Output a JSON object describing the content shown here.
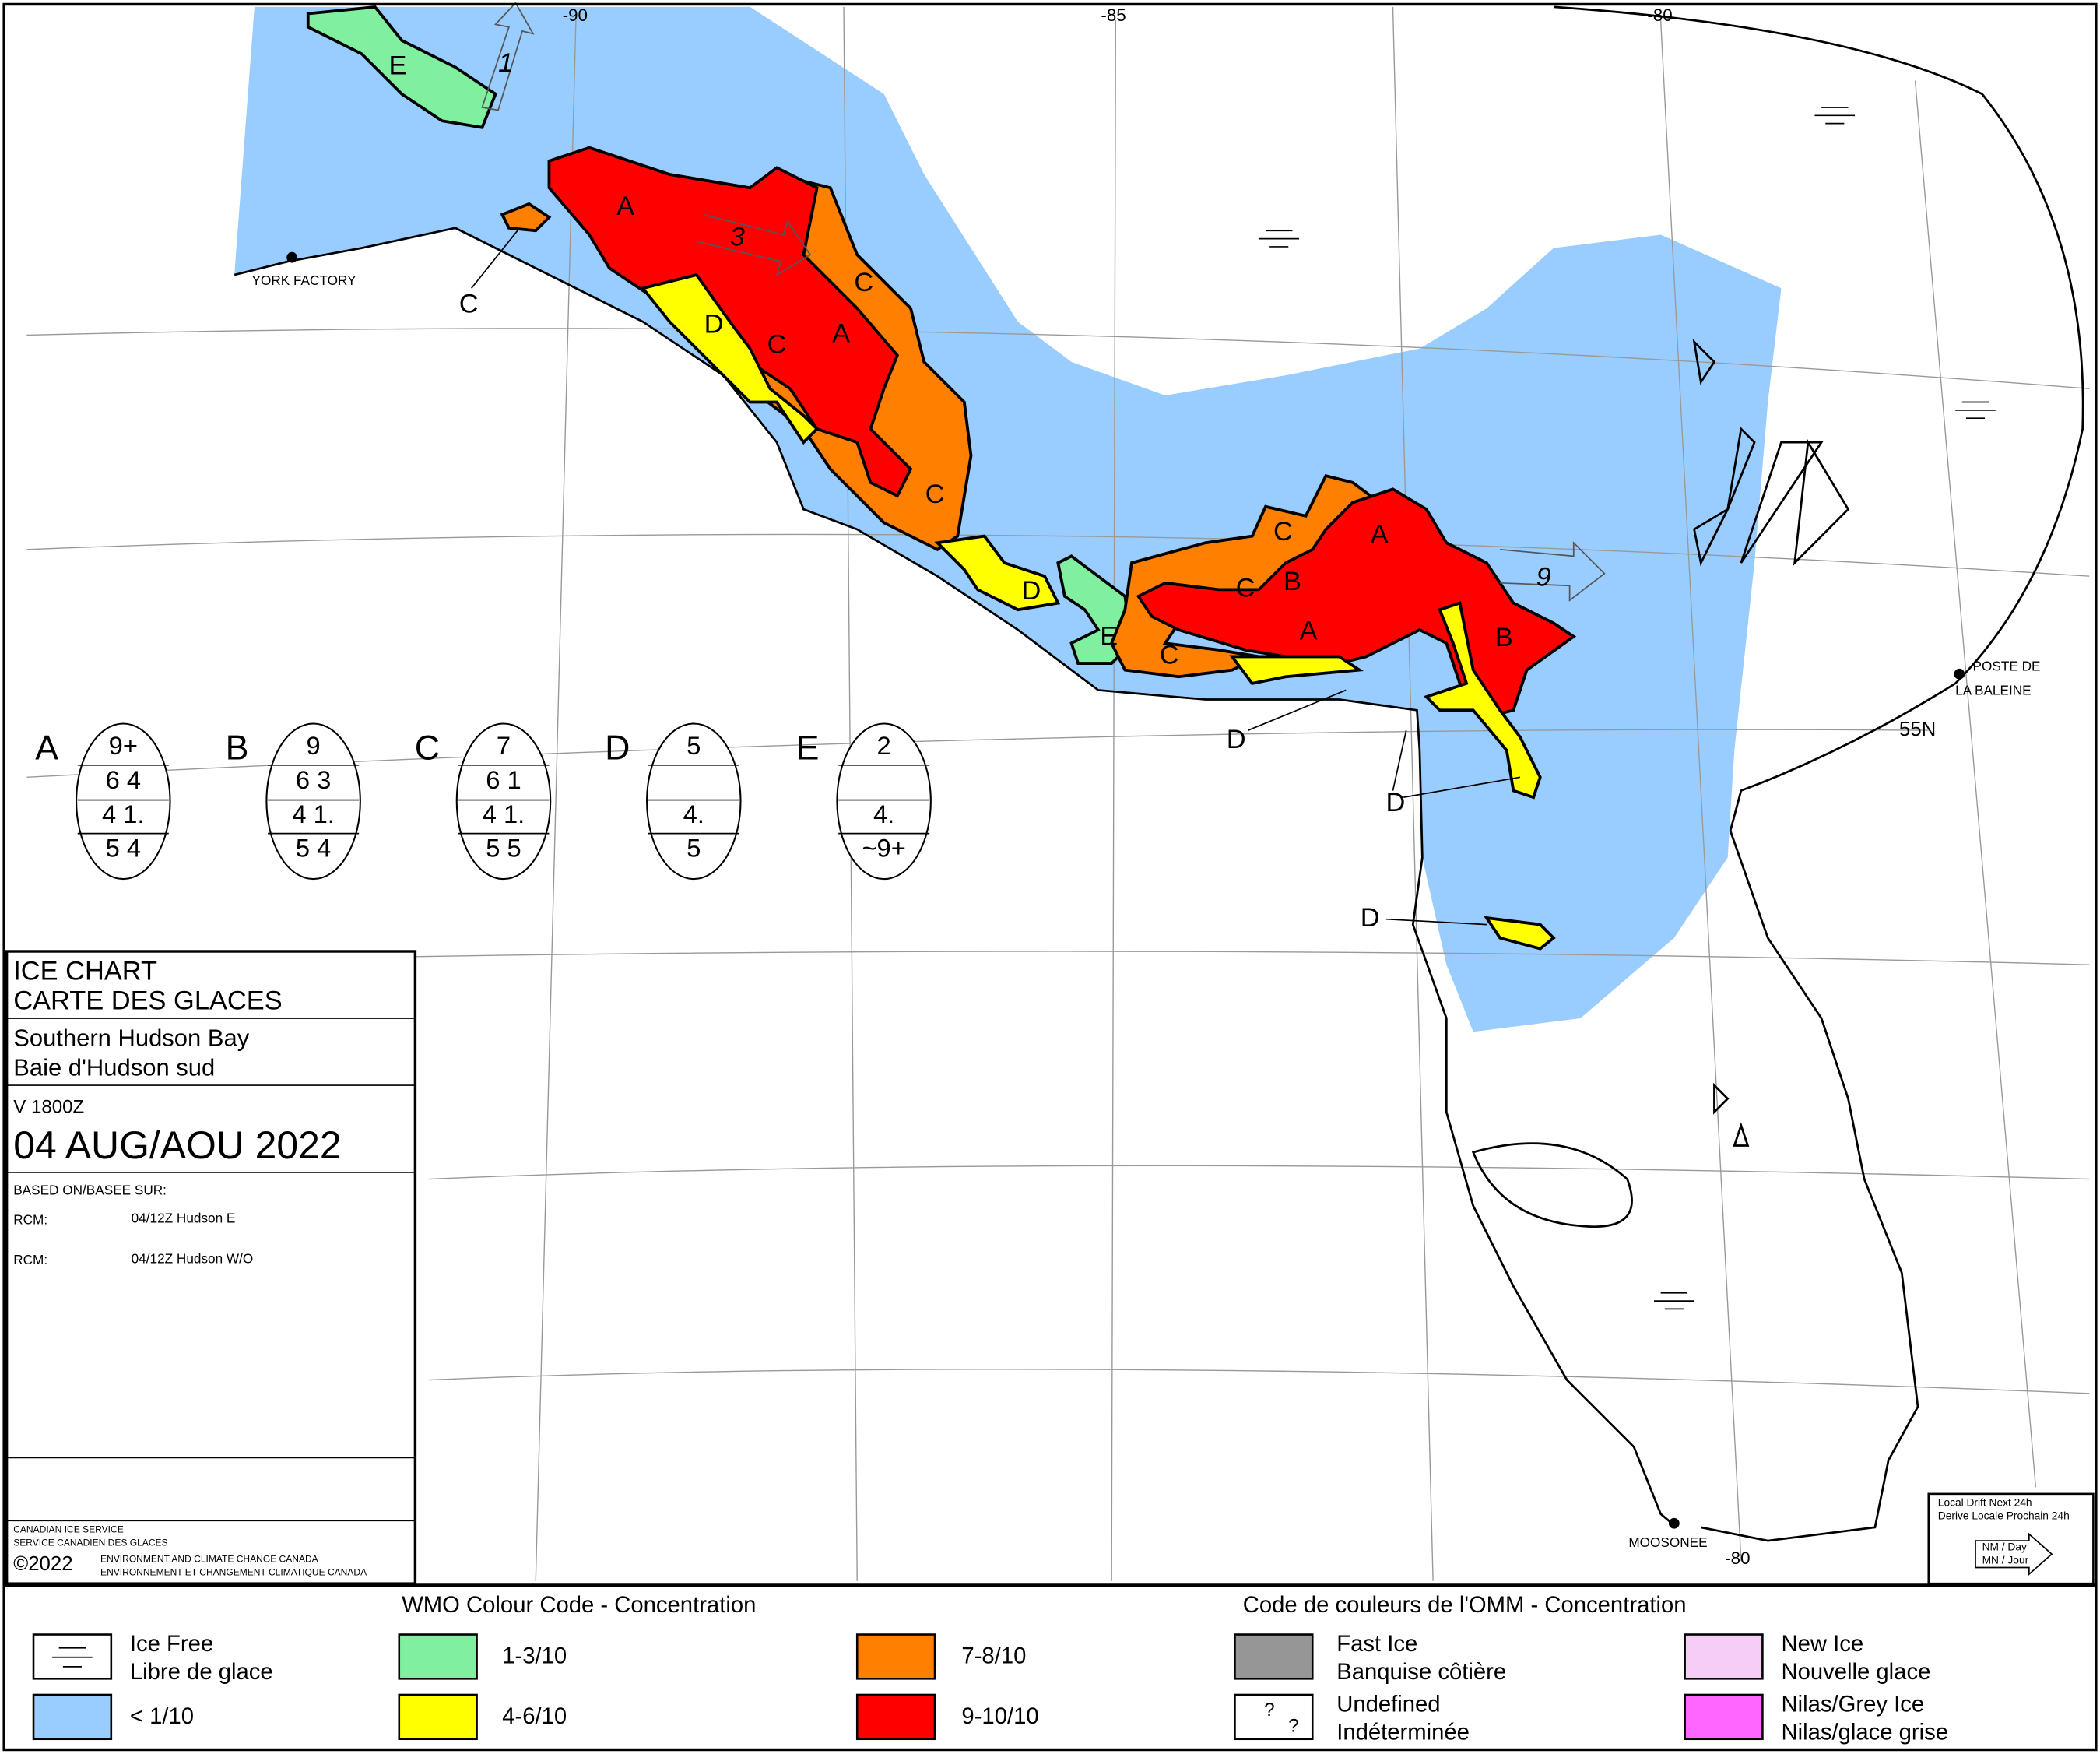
{
  "map": {
    "graticule_labels": [
      "-90",
      "-85",
      "-80",
      "55N",
      "-80"
    ],
    "places": [
      "YORK FACTORY",
      "POSTE DE",
      "LA BALEINE",
      "MOOSONEE"
    ],
    "region_labels": [
      "E",
      "C",
      "A",
      "C",
      "D",
      "C",
      "A",
      "C",
      "D",
      "E",
      "C",
      "C",
      "B",
      "C",
      "A",
      "A",
      "B",
      "D",
      "D",
      "D"
    ],
    "drift_values": [
      1,
      3,
      9
    ]
  },
  "egg_codes": [
    {
      "label": "A",
      "rows": [
        "9+",
        "6 4",
        "4 1.",
        "5 4"
      ]
    },
    {
      "label": "B",
      "rows": [
        "9",
        "6 3",
        "4 1.",
        "5 4"
      ]
    },
    {
      "label": "C",
      "rows": [
        "7",
        "6 1",
        "4 1.",
        "5 5"
      ]
    },
    {
      "label": "D",
      "rows": [
        "5",
        null,
        "4.",
        "5"
      ]
    },
    {
      "label": "E",
      "rows": [
        "2",
        null,
        "4.",
        "~9+"
      ]
    }
  ],
  "title_block": {
    "title": [
      "ICE CHART",
      "CARTE DES GLACES"
    ],
    "region": [
      "Southern Hudson Bay",
      "Baie d'Hudson sud"
    ],
    "valid": "V 1800Z",
    "date": "04 AUG/AOU 2022",
    "based_on": "BASED ON/BASEE SUR:",
    "sources": [
      {
        "sensor": "RCM:",
        "detail": "04/12Z Hudson E"
      },
      {
        "sensor": "RCM:",
        "detail": "04/12Z Hudson W/O"
      }
    ],
    "agency": [
      "CANADIAN ICE SERVICE",
      "SERVICE CANADIEN DES GLACES"
    ],
    "copyright": "©2022",
    "department": [
      "ENVIRONMENT AND CLIMATE CHANGE CANADA",
      "ENVIRONNEMENT ET CHANGEMENT CLIMATIQUE CANADA"
    ]
  },
  "drift_box": {
    "title": [
      "Local Drift Next 24h",
      "Derive Locale Prochain 24h"
    ],
    "units": [
      "NM / Day",
      "MN / Jour"
    ]
  },
  "legend": {
    "title_en": "WMO Colour Code - Concentration",
    "title_fr": "Code de couleurs de l'OMM - Concentration",
    "undefined_symbol": "?",
    "items": [
      {
        "labels": [
          "Ice Free",
          "Libre de glace"
        ],
        "color": "#ffffff"
      },
      {
        "labels": [
          "< 1/10"
        ],
        "color": "#99ccff"
      },
      {
        "labels": [
          "1-3/10"
        ],
        "color": "#80f0a0"
      },
      {
        "labels": [
          "4-6/10"
        ],
        "color": "#ffff00"
      },
      {
        "labels": [
          "7-8/10"
        ],
        "color": "#ff7f00"
      },
      {
        "labels": [
          "9-10/10"
        ],
        "color": "#ff0000"
      },
      {
        "labels": [
          "Fast Ice",
          "Banquise côtière"
        ],
        "color": "#969696"
      },
      {
        "labels": [
          "Undefined",
          "Indéterminée"
        ],
        "color": "#ffffff"
      },
      {
        "labels": [
          "New Ice",
          "Nouvelle glace"
        ],
        "color": "#f5cdf5"
      },
      {
        "labels": [
          "Nilas/Grey Ice",
          "Nilas/glace grise"
        ],
        "color": "#ff66ff"
      }
    ]
  }
}
